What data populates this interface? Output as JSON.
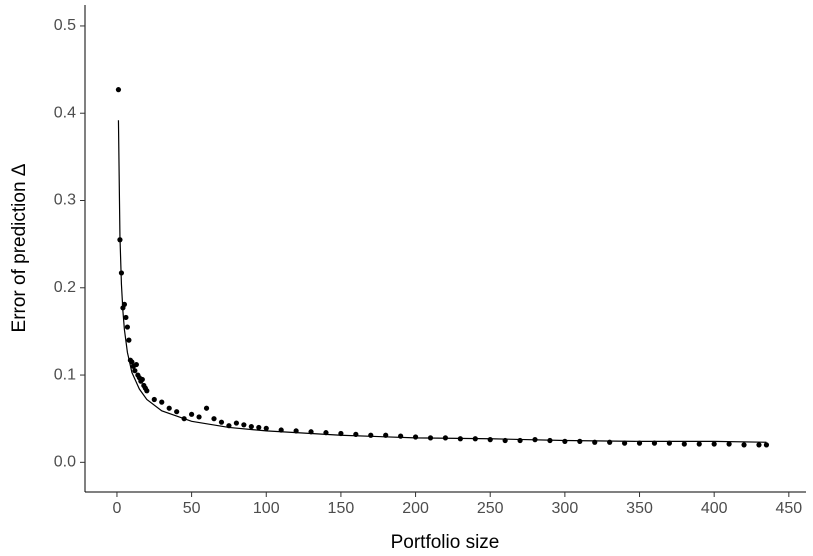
{
  "chart_data": {
    "type": "scatter",
    "x_label": "Portfolio size",
    "y_label": "Error of prediction Δ",
    "xlim": [
      -21.4,
      461.5
    ],
    "ylim": [
      -0.034,
      0.524
    ],
    "xticks": [
      0,
      50,
      100,
      150,
      200,
      250,
      300,
      350,
      400,
      450
    ],
    "yticks": [
      {
        "value": 0,
        "label": "0.0"
      },
      0.1,
      0.2,
      0.3,
      0.4,
      0.5
    ],
    "grid": false,
    "series": [
      {
        "style": "points",
        "color": "#000000",
        "x": [
          1,
          2,
          3,
          4,
          5,
          6,
          7,
          8,
          9,
          10,
          11,
          12,
          13,
          14,
          15,
          16,
          17,
          18,
          19,
          20,
          25,
          30,
          35,
          40,
          45,
          50,
          55,
          60,
          65,
          70,
          75,
          80,
          85,
          90,
          95,
          100,
          110,
          120,
          130,
          140,
          150,
          160,
          170,
          180,
          190,
          200,
          210,
          220,
          230,
          240,
          250,
          260,
          270,
          280,
          290,
          300,
          310,
          320,
          330,
          340,
          350,
          360,
          370,
          380,
          390,
          400,
          410,
          420,
          430,
          435
        ],
        "values": [
          0.427,
          0.255,
          0.217,
          0.177,
          0.181,
          0.166,
          0.155,
          0.14,
          0.117,
          0.115,
          0.11,
          0.105,
          0.112,
          0.1,
          0.097,
          0.093,
          0.095,
          0.088,
          0.085,
          0.082,
          0.072,
          0.069,
          0.062,
          0.058,
          0.05,
          0.055,
          0.052,
          0.062,
          0.05,
          0.046,
          0.042,
          0.045,
          0.043,
          0.041,
          0.04,
          0.039,
          0.037,
          0.036,
          0.035,
          0.034,
          0.033,
          0.032,
          0.031,
          0.031,
          0.03,
          0.029,
          0.028,
          0.028,
          0.027,
          0.027,
          0.026,
          0.025,
          0.025,
          0.026,
          0.025,
          0.024,
          0.024,
          0.023,
          0.023,
          0.022,
          0.022,
          0.022,
          0.022,
          0.021,
          0.021,
          0.021,
          0.021,
          0.02,
          0.02,
          0.02
        ]
      },
      {
        "style": "line",
        "color": "#000000",
        "x": [
          1,
          2,
          3,
          4,
          5,
          7,
          10,
          15,
          20,
          30,
          50,
          75,
          100,
          150,
          200,
          250,
          300,
          350,
          400,
          435
        ],
        "values": [
          0.392,
          0.259,
          0.204,
          0.173,
          0.152,
          0.126,
          0.103,
          0.084,
          0.072,
          0.059,
          0.047,
          0.04,
          0.036,
          0.031,
          0.028,
          0.027,
          0.025,
          0.024,
          0.024,
          0.023
        ]
      }
    ]
  }
}
